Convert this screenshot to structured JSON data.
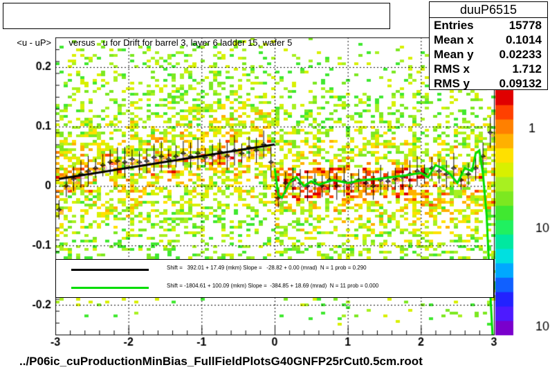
{
  "title": "<u - uP>       versus   u for Drift for barrel 3, layer 6 ladder 15, wafer 5",
  "footer": "../P06ic_cuProductionMinBias_FullFieldPlotsG40GNFP25rCut0.5cm.root",
  "stats": {
    "name": "duuP6515",
    "rows": [
      {
        "label": "Entries",
        "value": "15778"
      },
      {
        "label": "Mean x",
        "value": "0.1014"
      },
      {
        "label": "Mean y",
        "value": "0.02233"
      },
      {
        "label": "RMS x",
        "value": "1.712"
      },
      {
        "label": "RMS y",
        "value": "0.09132"
      }
    ]
  },
  "legend": [
    {
      "color": "#000000",
      "text": "Shift =   392.01 + 17.49 (mkm) Slope =   -28.82 + 0.00 (mrad)  N = 1 prob = 0.290"
    },
    {
      "color": "#00dd00",
      "text": "Shift = -1804.61 + 100.09 (mkm) Slope =  -384.85 + 18.69 (mrad)  N = 11 prob = 0.000"
    }
  ],
  "colors": {
    "palette": [
      "#7a00cc",
      "#4d1aff",
      "#2222ff",
      "#1060ff",
      "#00a8ff",
      "#00e0e0",
      "#00e8a0",
      "#20f060",
      "#40e830",
      "#7ce820",
      "#a8f020",
      "#d8f000",
      "#ffe000",
      "#ffb000",
      "#ff8000",
      "#ff4000",
      "#e00000"
    ],
    "profile_marker": "#000000",
    "point_marker": "#ff88bb",
    "fit_black": "#000000",
    "fit_green": "#00dd00"
  },
  "chart_data": {
    "type": "heatmap",
    "x_range": [
      -3,
      3
    ],
    "y_range": [
      -0.25,
      0.25
    ],
    "x_ticks": [
      "-3",
      "-2",
      "-1",
      "0",
      "1",
      "2",
      "3"
    ],
    "y_ticks": [
      "0.2",
      "0.1",
      "0",
      "-0.1",
      "-0.2"
    ],
    "colorbar_labels": [
      "1",
      "10",
      "10"
    ],
    "grid": true,
    "profile": {
      "x": [
        -2.95,
        -2.85,
        -2.75,
        -2.65,
        -2.55,
        -2.45,
        -2.35,
        -2.25,
        -2.15,
        -2.05,
        -1.95,
        -1.85,
        -1.75,
        -1.65,
        -1.55,
        -1.45,
        -1.35,
        -1.25,
        -1.15,
        -1.05,
        -0.95,
        -0.85,
        -0.75,
        -0.65,
        -0.55,
        -0.45,
        -0.35,
        -0.25,
        -0.15,
        -0.05,
        0.05,
        0.15,
        0.25,
        0.35,
        0.45,
        0.55,
        0.65,
        0.75,
        0.85,
        0.95,
        1.05,
        1.15,
        1.25,
        1.35,
        1.45,
        1.55,
        1.65,
        1.75,
        1.85,
        1.95,
        2.05,
        2.15,
        2.25,
        2.35,
        2.45,
        2.55,
        2.65,
        2.75,
        2.85,
        2.95
      ],
      "y": [
        -0.04,
        0.0,
        0.012,
        0.02,
        0.025,
        0.03,
        0.035,
        0.04,
        0.042,
        0.04,
        0.045,
        0.04,
        0.042,
        0.048,
        0.05,
        0.045,
        0.05,
        0.055,
        0.05,
        0.055,
        0.048,
        0.052,
        0.058,
        0.05,
        0.06,
        0.055,
        0.065,
        0.06,
        0.07,
        0.04,
        -0.02,
        0.005,
        0.01,
        0.005,
        0.0,
        0.005,
        0.0,
        0.01,
        0.0,
        0.008,
        0.005,
        0.01,
        0.005,
        0.0,
        0.01,
        0.008,
        0.012,
        0.015,
        0.02,
        0.025,
        0.02,
        0.03,
        0.025,
        0.02,
        0.03,
        0.01,
        0.02,
        0.03,
        0.05,
        0.09
      ]
    },
    "fit_black": {
      "x": [
        -2.95,
        0.0
      ],
      "y": [
        0.012,
        0.07
      ]
    },
    "fit_green": {
      "x": [
        0.0,
        0.05,
        0.1,
        0.2,
        0.3,
        0.4,
        0.5,
        0.6,
        0.8,
        1.0,
        1.2,
        1.4,
        1.6,
        1.8,
        2.0,
        2.1,
        2.2,
        2.3,
        2.4,
        2.5,
        2.6,
        2.7,
        2.75,
        2.8,
        2.85,
        2.9,
        2.95,
        2.98
      ],
      "y": [
        0.03,
        -0.015,
        -0.02,
        0.005,
        0.015,
        0.0,
        0.008,
        0.002,
        0.01,
        0.005,
        0.01,
        0.012,
        0.015,
        0.018,
        0.022,
        0.015,
        0.035,
        0.03,
        0.02,
        0.005,
        0.03,
        0.025,
        0.055,
        0.06,
        0.02,
        -0.05,
        -0.18,
        -0.25
      ]
    }
  }
}
